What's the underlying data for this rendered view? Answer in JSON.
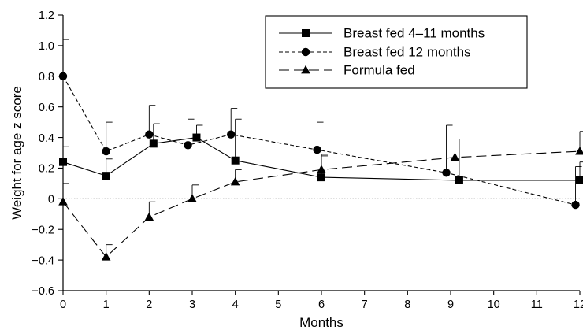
{
  "chart_data": {
    "type": "line",
    "title": "",
    "xlabel": "Months",
    "ylabel": "Weight for age z score",
    "xlim": [
      0,
      12
    ],
    "ylim": [
      -0.6,
      1.2
    ],
    "xticks": [
      0,
      1,
      2,
      3,
      4,
      5,
      6,
      7,
      8,
      9,
      10,
      11,
      12
    ],
    "yticks": [
      -0.6,
      -0.4,
      -0.2,
      0,
      0.2,
      0.4,
      0.6,
      0.8,
      1.0,
      1.2
    ],
    "ytick_labels": [
      "−0.6",
      "−0.4",
      "−0.2",
      "0",
      "0.2",
      "0.4",
      "0.6",
      "0.8",
      "1.0",
      "1.2"
    ],
    "xtick_labels": [
      "0",
      "1",
      "2",
      "3",
      "4",
      "5",
      "6",
      "7",
      "8",
      "9",
      "10",
      "11",
      "12"
    ],
    "reference_line_y": 0,
    "grid": false,
    "legend_position": "top-right",
    "series": [
      {
        "name": "Breast fed 4–11 months",
        "marker": "square",
        "line_style": "solid",
        "color": "#000000",
        "x": [
          0,
          1,
          2.1,
          3.1,
          4,
          6,
          9.2,
          12
        ],
        "y": [
          0.24,
          0.15,
          0.36,
          0.4,
          0.25,
          0.14,
          0.12,
          0.12
        ],
        "error_upper": [
          0.34,
          0.26,
          0.49,
          0.48,
          0.52,
          0.28,
          0.39,
          0.24
        ]
      },
      {
        "name": "Breast fed 12 months",
        "marker": "circle",
        "line_style": "dashed",
        "color": "#000000",
        "x": [
          0,
          1,
          2,
          2.9,
          3.9,
          5.9,
          8.9,
          11.9
        ],
        "y": [
          0.8,
          0.31,
          0.42,
          0.35,
          0.42,
          0.32,
          0.17,
          -0.04
        ],
        "error_upper": [
          1.04,
          0.5,
          0.61,
          0.52,
          0.59,
          0.5,
          0.48,
          0.21
        ]
      },
      {
        "name": "Formula fed",
        "marker": "triangle",
        "line_style": "long-dash",
        "color": "#000000",
        "x": [
          0,
          1,
          2,
          3,
          4,
          6,
          9.1,
          12
        ],
        "y": [
          -0.02,
          -0.38,
          -0.12,
          0,
          0.11,
          0.19,
          0.27,
          0.31
        ],
        "error_upper": [
          0.1,
          -0.3,
          -0.02,
          0.09,
          0.19,
          0.29,
          0.39,
          0.44
        ]
      }
    ]
  }
}
